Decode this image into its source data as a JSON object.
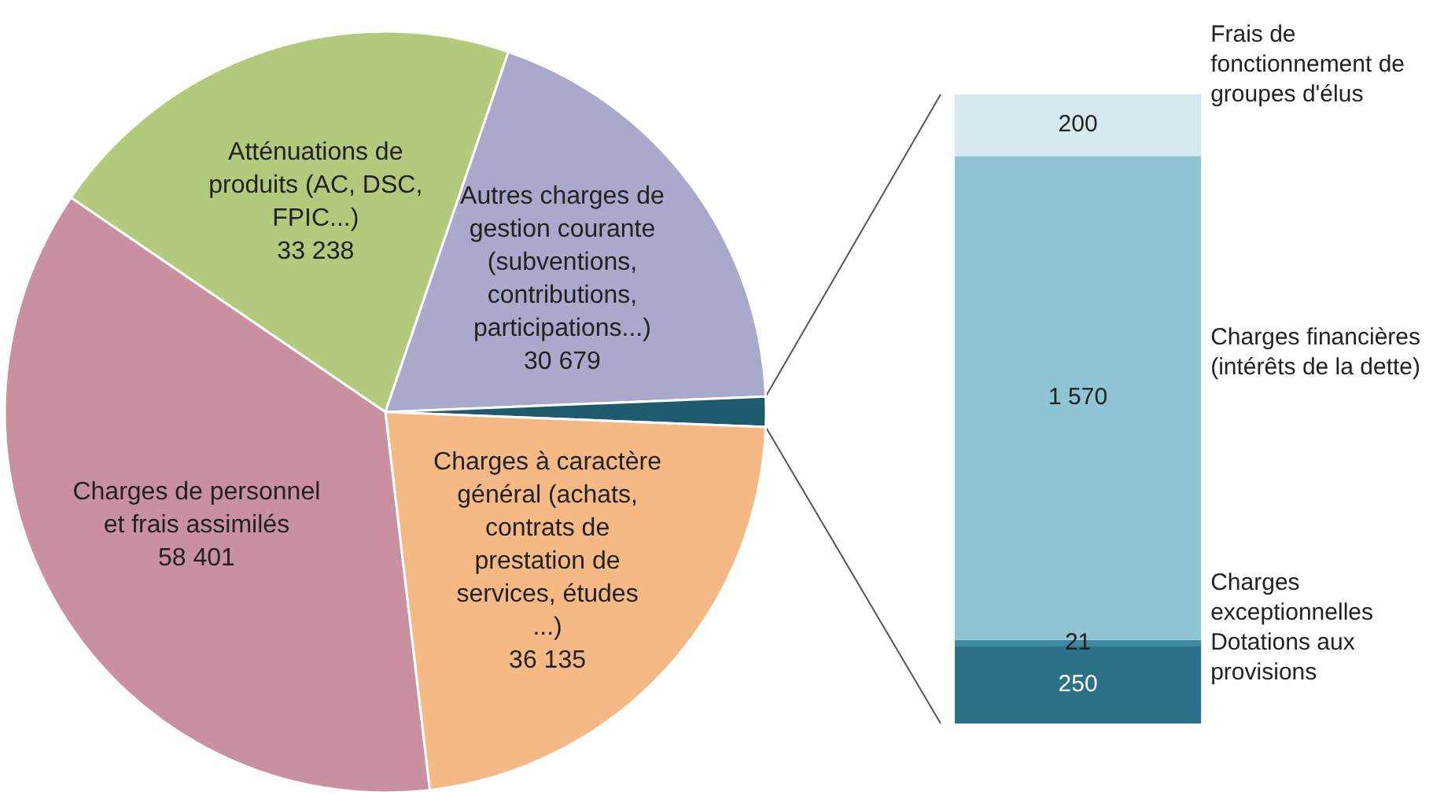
{
  "chart_data": [
    {
      "type": "pie",
      "categories": [
        "Atténuations de produits (AC, DSC, FPIC...)",
        "Autres charges de gestion courante (subventions, contributions, participations...)",
        null,
        "Charges à caractère général (achats, contrats de prestation de services, études ...)",
        "Charges de personnel et frais assimilés"
      ],
      "values": [
        33238,
        30679,
        2041,
        36135,
        58401
      ],
      "colors": [
        "#b3c97c",
        "#a9aacb",
        "#1f5b6e",
        "#f5b985",
        "#c9919f"
      ],
      "value_labels": [
        "33 238",
        "30 679",
        null,
        "36 135",
        "58 401"
      ]
    },
    {
      "type": "bar",
      "stacked": true,
      "categories": [
        null
      ],
      "series": [
        {
          "name": "Dotations aux provisions",
          "color": "#2b7187",
          "values": [
            250
          ],
          "value_labels": [
            "250"
          ]
        },
        {
          "name": "Charges exceptionnelles",
          "color": "#3f8aa0",
          "values": [
            21
          ],
          "value_labels": [
            "21"
          ]
        },
        {
          "name": "Charges financières (intérêts de la dette)",
          "color": "#8ec4d4",
          "values": [
            1570
          ],
          "value_labels": [
            "1 570"
          ]
        },
        {
          "name": "Frais de fonctionnement de groupes d'élus",
          "color": "#d5e9ef",
          "values": [
            200
          ],
          "value_labels": [
            "200"
          ]
        }
      ]
    }
  ]
}
